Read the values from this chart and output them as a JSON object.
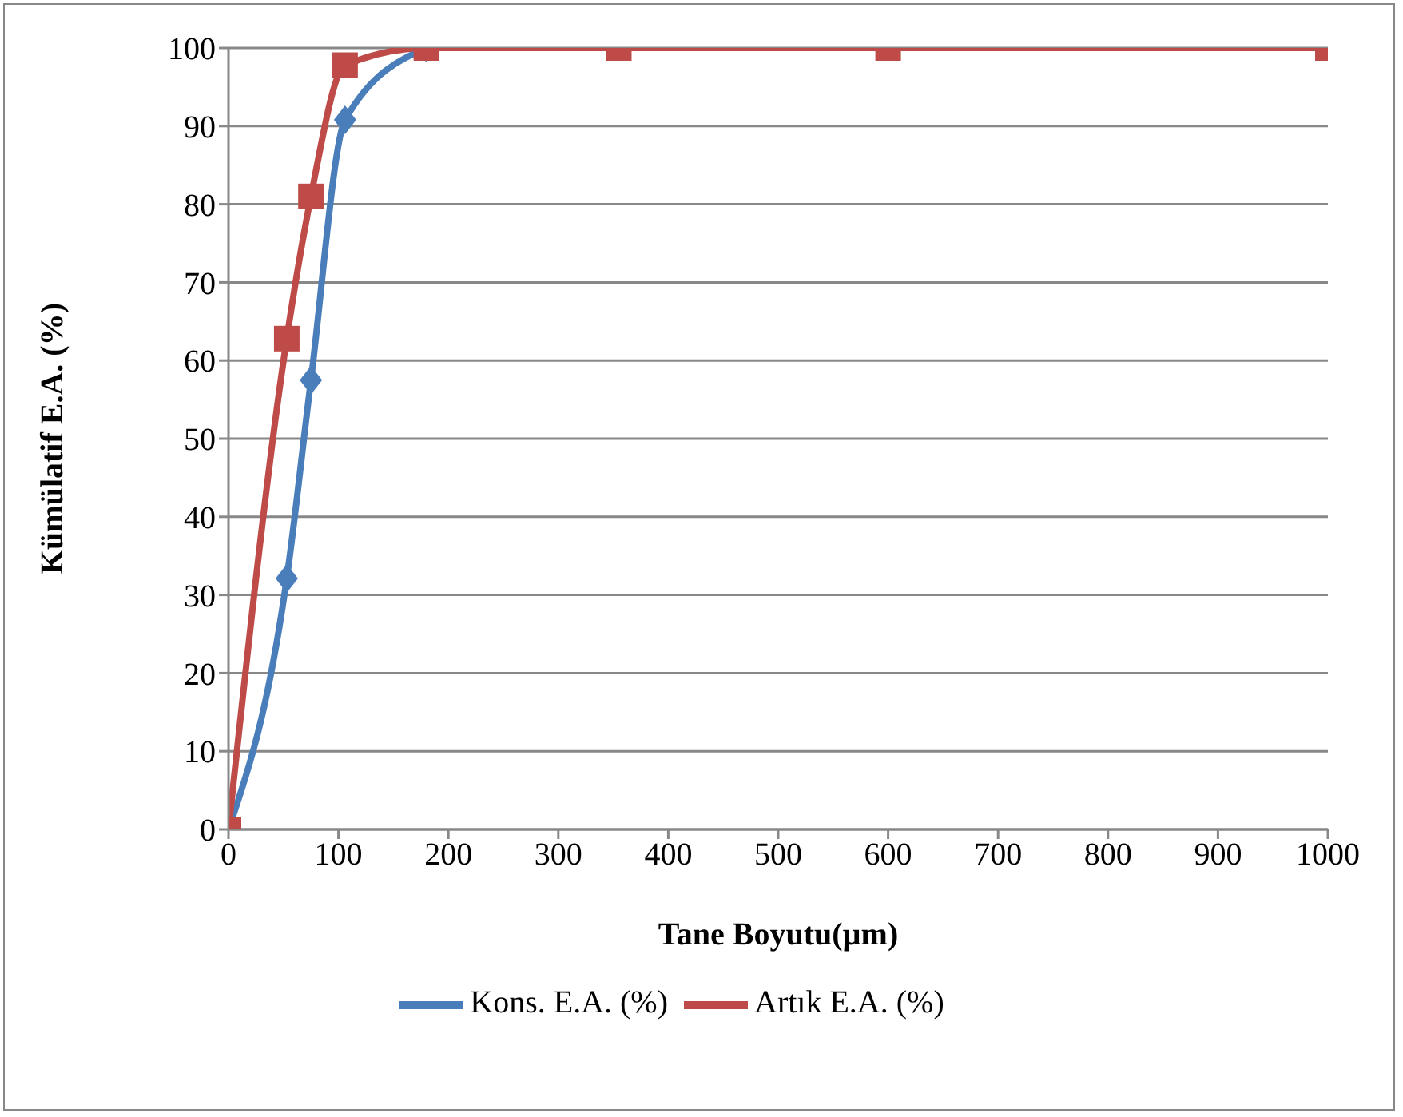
{
  "chart_data": {
    "type": "line",
    "xlabel": "Tane Boyutu(µm)",
    "ylabel": "Kümülatif E.A. (%)",
    "x": [
      0,
      53,
      75,
      106,
      180,
      355,
      600,
      1000
    ],
    "series": [
      {
        "name": "Kons. E.A. (%)",
        "color": "#4a7ebb",
        "marker": "diamond",
        "values": [
          0,
          32.1,
          57.5,
          90.8,
          100,
          null,
          null,
          null
        ]
      },
      {
        "name": "Artık E.A. (%)",
        "color": "#be4b48",
        "marker": "square",
        "values": [
          0,
          62.8,
          81,
          97.8,
          100,
          100,
          100,
          100
        ]
      }
    ],
    "xlim": [
      0,
      1000
    ],
    "xticks": [
      0,
      100,
      200,
      300,
      400,
      500,
      600,
      700,
      800,
      900,
      1000
    ],
    "ylim": [
      0,
      100
    ],
    "yticks": [
      0,
      10,
      20,
      30,
      40,
      50,
      60,
      70,
      80,
      90,
      100
    ],
    "grid": "y",
    "legend": "bottom",
    "line_style": "solid"
  }
}
